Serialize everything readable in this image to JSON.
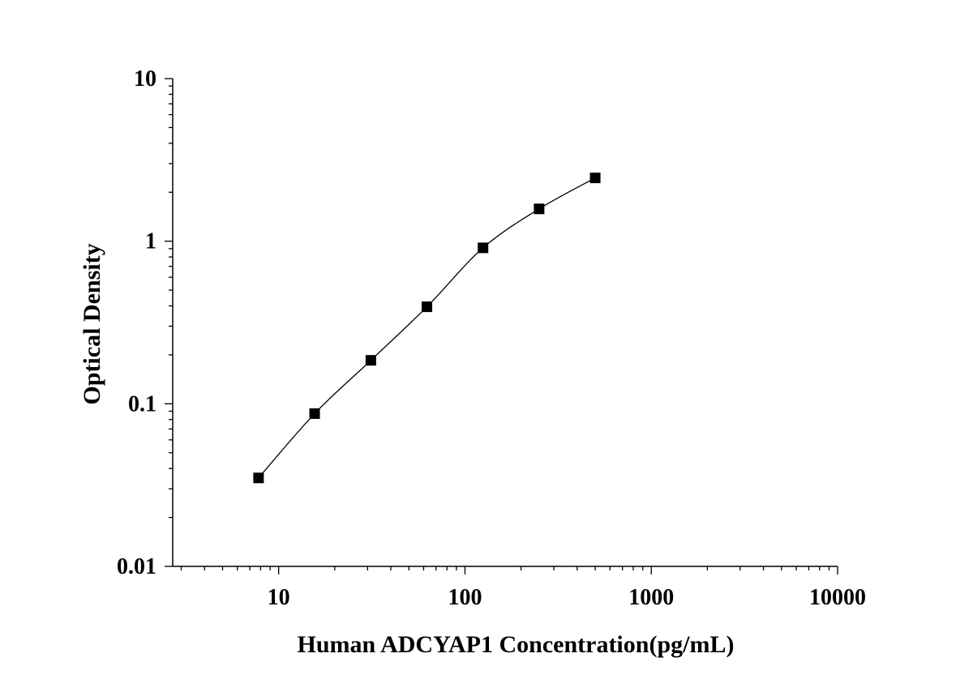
{
  "chart_data": {
    "type": "scatter",
    "title": "",
    "xlabel": "Human ADCYAP1 Concentration(pg/mL)",
    "ylabel": "Optical Density",
    "x_scale": "log",
    "y_scale": "log",
    "xlim": [
      2.7,
      10000
    ],
    "ylim": [
      0.01,
      10
    ],
    "x_ticks": [
      10,
      100,
      1000,
      10000
    ],
    "x_tick_labels": [
      "10",
      "100",
      "1000",
      "10000"
    ],
    "y_ticks": [
      0.01,
      0.1,
      1,
      10
    ],
    "y_tick_labels": [
      "0.01",
      "0.1",
      "1",
      "10"
    ],
    "grid": false,
    "legend": "none",
    "marker": "filled-square",
    "line": "smooth fitted curve",
    "color": "#000000",
    "series": [
      {
        "x": [
          7.8,
          15.6,
          31.25,
          62.5,
          125,
          250,
          500
        ],
        "y": [
          0.035,
          0.087,
          0.185,
          0.395,
          0.91,
          1.58,
          2.45
        ]
      }
    ]
  }
}
